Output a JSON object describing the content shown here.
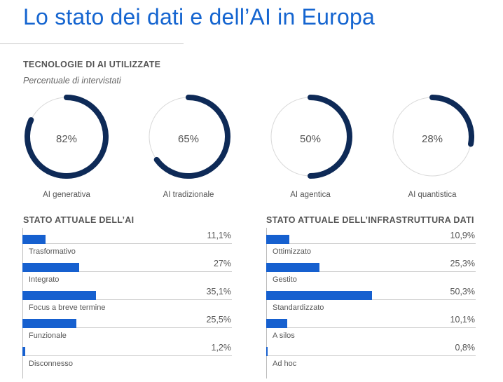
{
  "page": {
    "title": "Lo stato dei dati e dell’AI in Europa"
  },
  "colors": {
    "title": "#1565d0",
    "donut_arc": "#0e2a57",
    "donut_track": "#d9d9d9",
    "bar": "#1660cf"
  },
  "chart_data": [
    {
      "type": "pie",
      "variant": "donut-gauges",
      "title": "TECNOLOGIE DI AI UTILIZZATE",
      "subtitle": "Percentuale di intervistati",
      "categories": [
        "AI generativa",
        "AI tradizionale",
        "AI agentica",
        "AI quantistica"
      ],
      "values": [
        82,
        65,
        50,
        28
      ],
      "value_labels": [
        "82%",
        "65%",
        "50%",
        "28%"
      ],
      "ylim": [
        0,
        100
      ]
    },
    {
      "type": "bar",
      "orientation": "horizontal",
      "title": "STATO ATTUALE DELL’AI",
      "categories": [
        "Trasformativo",
        "Integrato",
        "Focus a breve termine",
        "Funzionale",
        "Disconnesso"
      ],
      "values": [
        11.1,
        27,
        35.1,
        25.5,
        1.2
      ],
      "value_labels": [
        "11,1%",
        "27%",
        "35,1%",
        "25,5%",
        "1,2%"
      ],
      "xlim": [
        0,
        100
      ]
    },
    {
      "type": "bar",
      "orientation": "horizontal",
      "title": "STATO ATTUALE DELL’INFRASTRUTTURA DATI",
      "categories": [
        "Ottimizzato",
        "Gestito",
        "Standardizzato",
        "A silos",
        "Ad hoc"
      ],
      "values": [
        10.9,
        25.3,
        50.3,
        10.1,
        0.8
      ],
      "value_labels": [
        "10,9%",
        "25,3%",
        "50,3%",
        "10,1%",
        "0,8%"
      ],
      "xlim": [
        0,
        100
      ]
    }
  ]
}
